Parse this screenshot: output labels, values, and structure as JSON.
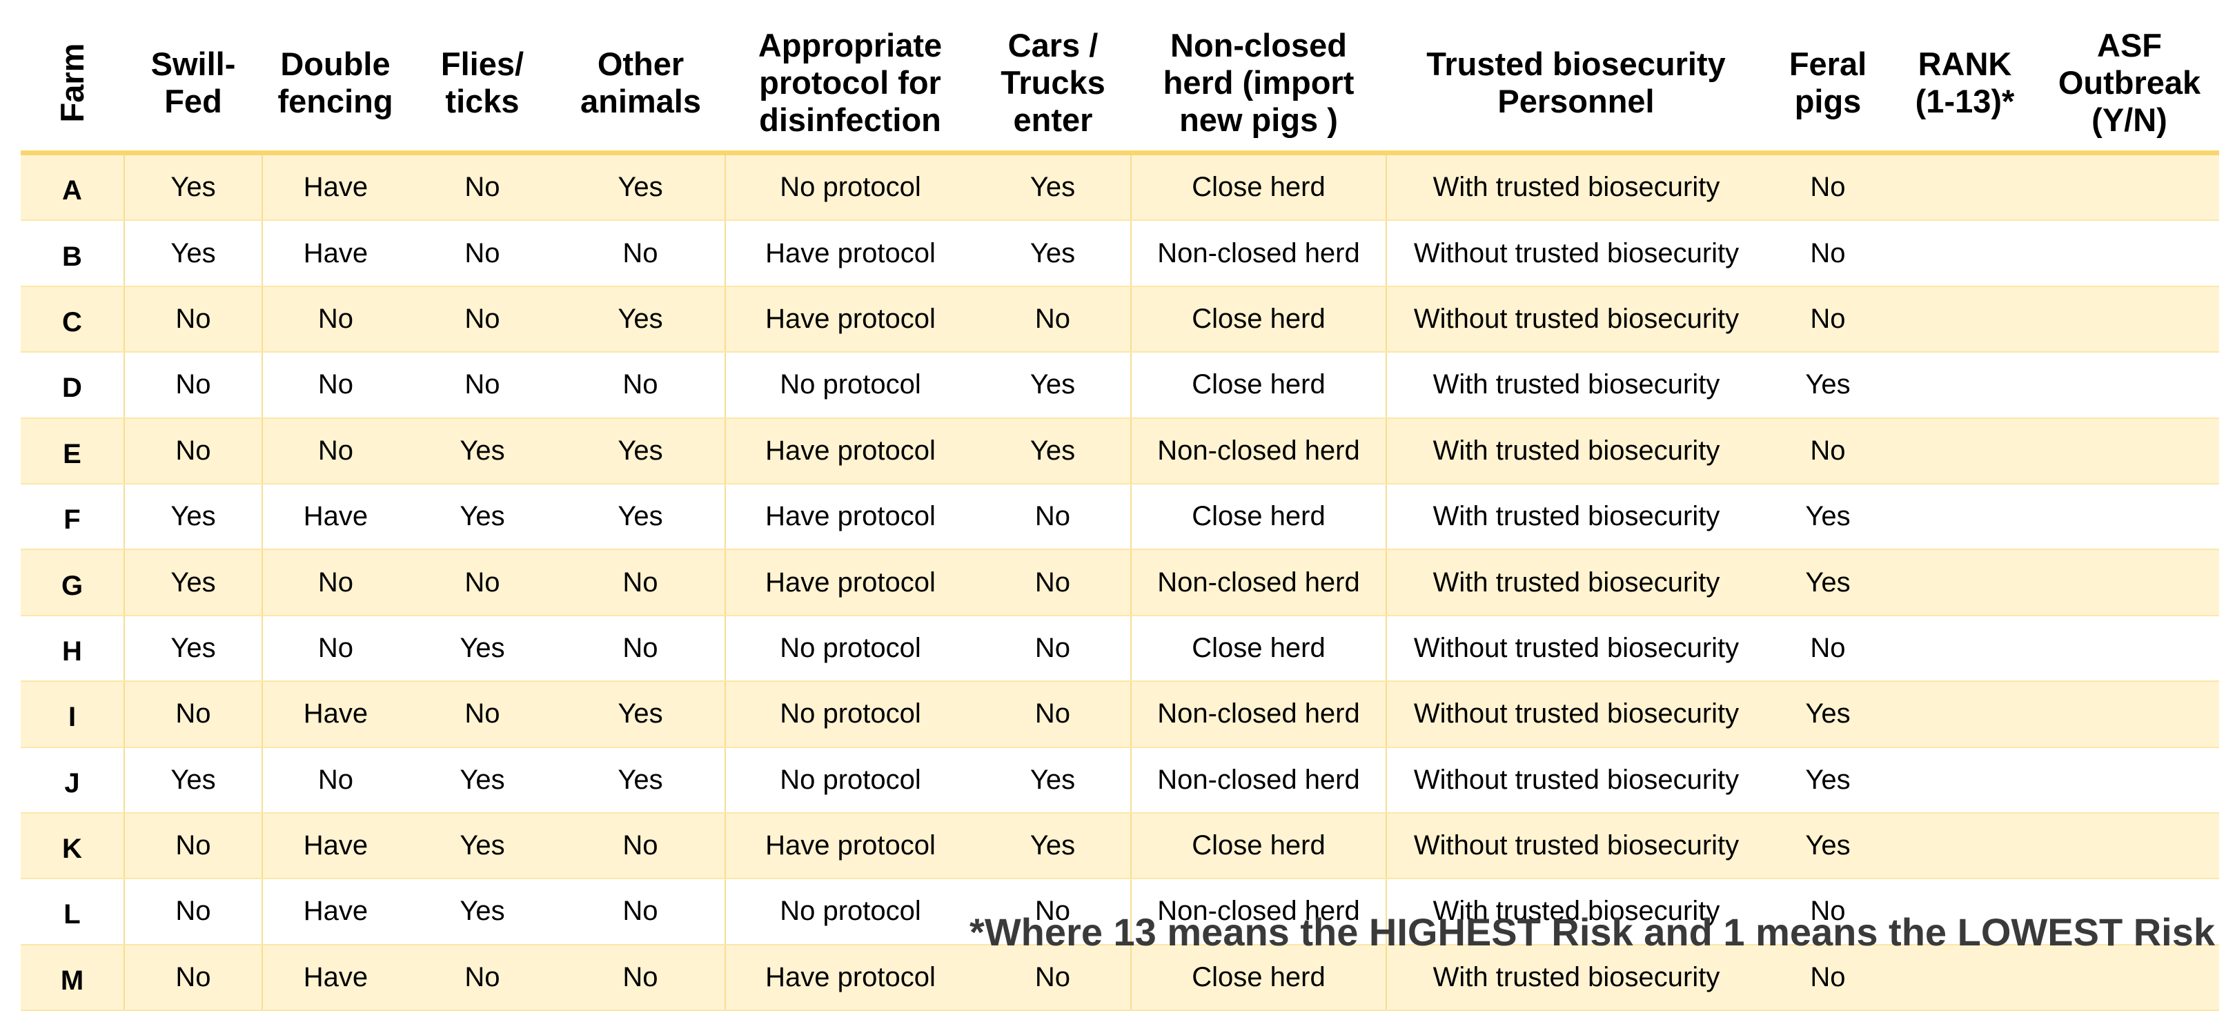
{
  "headers": {
    "farm": "Farm",
    "swill": [
      "Swill-",
      "Fed"
    ],
    "fencing": [
      "Double",
      "fencing"
    ],
    "flies": [
      "Flies/",
      "ticks"
    ],
    "animals": [
      "Other",
      "animals"
    ],
    "protocol": [
      "Appropriate",
      "protocol for",
      "disinfection"
    ],
    "cars": [
      "Cars /",
      "Trucks",
      "enter"
    ],
    "herd": [
      "Non-closed",
      "herd (import",
      "new pigs )"
    ],
    "personnel": [
      "Trusted biosecurity",
      "Personnel"
    ],
    "feral": [
      "Feral",
      "pigs"
    ],
    "rank": [
      "RANK",
      "(1-13)*"
    ],
    "asf": [
      "ASF",
      "Outbreak",
      "(Y/N)"
    ]
  },
  "rows": [
    {
      "farm": "A",
      "swill": "Yes",
      "fencing": "Have",
      "flies": "No",
      "animals": "Yes",
      "protocol": "No protocol",
      "cars": "Yes",
      "herd": "Close herd",
      "personnel": "With trusted biosecurity",
      "feral": "No",
      "rank": "",
      "asf": ""
    },
    {
      "farm": "B",
      "swill": "Yes",
      "fencing": "Have",
      "flies": "No",
      "animals": "No",
      "protocol": "Have protocol",
      "cars": "Yes",
      "herd": "Non-closed herd",
      "personnel": "Without trusted biosecurity",
      "feral": "No",
      "rank": "",
      "asf": ""
    },
    {
      "farm": "C",
      "swill": "No",
      "fencing": "No",
      "flies": "No",
      "animals": "Yes",
      "protocol": "Have protocol",
      "cars": "No",
      "herd": "Close herd",
      "personnel": "Without trusted biosecurity",
      "feral": "No",
      "rank": "",
      "asf": ""
    },
    {
      "farm": "D",
      "swill": "No",
      "fencing": "No",
      "flies": "No",
      "animals": "No",
      "protocol": "No protocol",
      "cars": "Yes",
      "herd": "Close herd",
      "personnel": "With trusted biosecurity",
      "feral": "Yes",
      "rank": "",
      "asf": ""
    },
    {
      "farm": "E",
      "swill": "No",
      "fencing": "No",
      "flies": "Yes",
      "animals": "Yes",
      "protocol": "Have protocol",
      "cars": "Yes",
      "herd": "Non-closed herd",
      "personnel": "With trusted biosecurity",
      "feral": "No",
      "rank": "",
      "asf": ""
    },
    {
      "farm": "F",
      "swill": "Yes",
      "fencing": "Have",
      "flies": "Yes",
      "animals": "Yes",
      "protocol": "Have protocol",
      "cars": "No",
      "herd": "Close herd",
      "personnel": "With trusted biosecurity",
      "feral": "Yes",
      "rank": "",
      "asf": ""
    },
    {
      "farm": "G",
      "swill": "Yes",
      "fencing": "No",
      "flies": "No",
      "animals": "No",
      "protocol": "Have protocol",
      "cars": "No",
      "herd": "Non-closed herd",
      "personnel": "With trusted biosecurity",
      "feral": "Yes",
      "rank": "",
      "asf": ""
    },
    {
      "farm": "H",
      "swill": "Yes",
      "fencing": "No",
      "flies": "Yes",
      "animals": "No",
      "protocol": "No protocol",
      "cars": "No",
      "herd": "Close herd",
      "personnel": "Without trusted biosecurity",
      "feral": "No",
      "rank": "",
      "asf": ""
    },
    {
      "farm": "I",
      "swill": "No",
      "fencing": "Have",
      "flies": "No",
      "animals": "Yes",
      "protocol": "No protocol",
      "cars": "No",
      "herd": "Non-closed herd",
      "personnel": "Without trusted biosecurity",
      "feral": "Yes",
      "rank": "",
      "asf": ""
    },
    {
      "farm": "J",
      "swill": "Yes",
      "fencing": "No",
      "flies": "Yes",
      "animals": "Yes",
      "protocol": "No protocol",
      "cars": "Yes",
      "herd": "Non-closed herd",
      "personnel": "Without trusted biosecurity",
      "feral": "Yes",
      "rank": "",
      "asf": ""
    },
    {
      "farm": "K",
      "swill": "No",
      "fencing": "Have",
      "flies": "Yes",
      "animals": "No",
      "protocol": "Have protocol",
      "cars": "Yes",
      "herd": "Close herd",
      "personnel": "Without trusted biosecurity",
      "feral": "Yes",
      "rank": "",
      "asf": ""
    },
    {
      "farm": "L",
      "swill": "No",
      "fencing": "Have",
      "flies": "Yes",
      "animals": "No",
      "protocol": "No protocol",
      "cars": "No",
      "herd": "Non-closed herd",
      "personnel": "With trusted biosecurity",
      "feral": "No",
      "rank": "",
      "asf": ""
    },
    {
      "farm": "M",
      "swill": "No",
      "fencing": "Have",
      "flies": "No",
      "animals": "No",
      "protocol": "Have protocol",
      "cars": "No",
      "herd": "Close herd",
      "personnel": "With trusted biosecurity",
      "feral": "No",
      "rank": "",
      "asf": ""
    }
  ],
  "footnote": "*Where 13 means the HIGHEST Risk and 1 means the LOWEST Risk",
  "colors": {
    "header_rule": "#F9D66B",
    "band_row": "#FFF3D1",
    "grid_line": "#F6DE90",
    "footnote_text": "#3a3a3a"
  }
}
